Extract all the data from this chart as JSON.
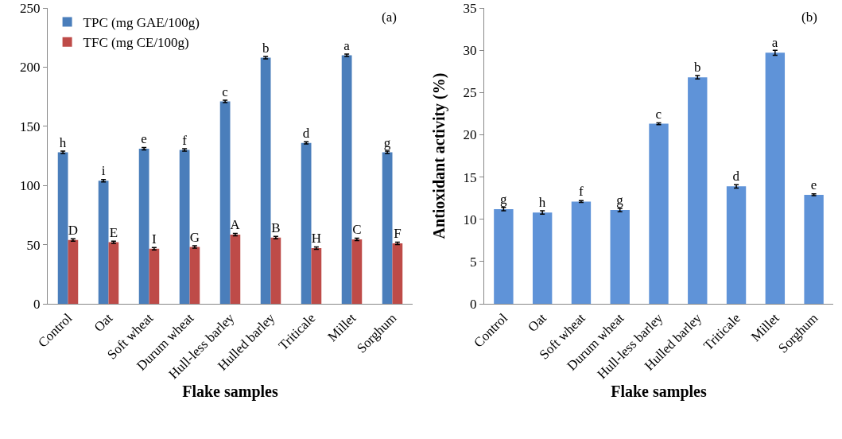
{
  "chart_data": [
    {
      "type": "bar",
      "title": "(a)",
      "xlabel": "Flake samples",
      "categories": [
        "Control",
        "Oat",
        "Soft wheat",
        "Durum wheat",
        "Hull-less barley",
        "Hulled barley",
        "Triticale",
        "Millet",
        "Sorghum"
      ],
      "series": [
        {
          "name": "TPC (mg GAE/100g)",
          "color": "#4a7ebb",
          "values": [
            128,
            104,
            131,
            130,
            171,
            208,
            136,
            210,
            128
          ],
          "errors": [
            1,
            1,
            1,
            1,
            1,
            1,
            1,
            1,
            1
          ],
          "value_labels": [
            "h",
            "i",
            "e",
            "f",
            "c",
            "b",
            "d",
            "a",
            "g"
          ]
        },
        {
          "name": "TFC (mg CE/100g)",
          "color": "#be4b48",
          "values": [
            54,
            52,
            46.5,
            48,
            58.5,
            56,
            47,
            54.5,
            51
          ],
          "errors": [
            1,
            1,
            1,
            1,
            1,
            1,
            1,
            1,
            1
          ],
          "value_labels": [
            "D",
            "E",
            "I",
            "G",
            "A",
            "B",
            "H",
            "C",
            "F"
          ]
        }
      ],
      "ylim": [
        0,
        250
      ],
      "yticks": [
        0,
        50,
        100,
        150,
        200,
        250
      ],
      "legend": "top left"
    },
    {
      "type": "bar",
      "title": "(b)",
      "xlabel": "Flake samples",
      "ylabel": "Antioxidant activity (%)",
      "categories": [
        "Control",
        "Oat",
        "Soft wheat",
        "Durum wheat",
        "Hull-less barley",
        "Hulled barley",
        "Triticale",
        "Millet",
        "Sorghum"
      ],
      "series": [
        {
          "color": "#5f93d8",
          "values": [
            11.2,
            10.8,
            12.1,
            11.1,
            21.3,
            26.8,
            13.9,
            29.7,
            12.9
          ],
          "errors": [
            0.2,
            0.2,
            0.1,
            0.2,
            0.1,
            0.2,
            0.2,
            0.3,
            0.1
          ],
          "value_labels": [
            "g",
            "h",
            "f",
            "g",
            "c",
            "b",
            "d",
            "a",
            "e"
          ]
        }
      ],
      "ylim": [
        0,
        35
      ],
      "yticks": [
        0,
        5,
        10,
        15,
        20,
        25,
        30,
        35
      ]
    }
  ]
}
